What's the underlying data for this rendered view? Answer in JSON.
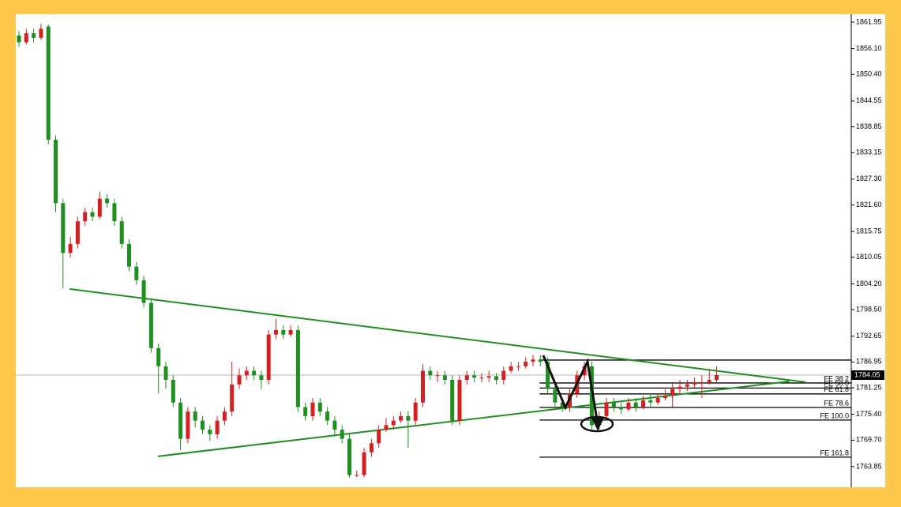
{
  "chart_data": {
    "type": "candlestick",
    "up_color": "#d42020",
    "down_color": "#1f8f1f",
    "open": [
      1859,
      1857.5,
      1859.5,
      1858.5,
      1861,
      1836,
      1822,
      1811,
      1813,
      1818,
      1820,
      1819,
      1823,
      1822,
      1818,
      1813,
      1808,
      1805,
      1800,
      1790,
      1786,
      1783,
      1778,
      1770,
      1776,
      1774,
      1772,
      1771,
      1774,
      1776,
      1782,
      1784,
      1785,
      1784,
      1783,
      1793,
      1794,
      1793,
      1794,
      1777,
      1775,
      1778,
      1776,
      1774,
      1772,
      1770,
      1762,
      1762,
      1767,
      1769,
      1772,
      1773,
      1774,
      1775,
      1774,
      1778,
      1785,
      1784,
      1784,
      1783,
      1774,
      1783,
      1784,
      1783.5,
      1783.5,
      1783.8,
      1783,
      1785,
      1786,
      1786,
      1787,
      1787.5,
      1787,
      1781,
      1778,
      1777,
      1780,
      1784,
      1786,
      1773,
      1775,
      1778,
      1777,
      1776.5,
      1778,
      1777,
      1778.5,
      1778,
      1779,
      1779.5,
      1781,
      1781.5,
      1782,
      1782.5,
      1782.5,
      1783
    ],
    "high": [
      1860,
      1860.5,
      1860.5,
      1861.6,
      1861.5,
      1837,
      1823,
      1814.5,
      1819,
      1821,
      1821,
      1824.5,
      1824,
      1823,
      1819,
      1814,
      1809,
      1806,
      1801,
      1791,
      1787,
      1784,
      1779,
      1777,
      1777,
      1775,
      1773,
      1775,
      1777,
      1787,
      1785.5,
      1786,
      1786,
      1785,
      1794,
      1796.5,
      1795,
      1795,
      1795,
      1778,
      1779,
      1779,
      1777,
      1775,
      1773,
      1771,
      1763,
      1768,
      1770,
      1773,
      1774.5,
      1775,
      1776,
      1776,
      1779,
      1786.5,
      1786,
      1785,
      1785,
      1784,
      1784,
      1785,
      1785,
      1784.5,
      1785,
      1784.5,
      1786,
      1787,
      1787,
      1788,
      1788.5,
      1788.5,
      1788,
      1782,
      1779,
      1781,
      1785,
      1787,
      1787,
      1776,
      1779,
      1779,
      1778,
      1779,
      1779,
      1779.5,
      1780,
      1780,
      1781,
      1782.5,
      1783,
      1783,
      1783.5,
      1784,
      1785,
      1786
    ],
    "low": [
      1856.5,
      1857,
      1857.5,
      1858,
      1835,
      1820,
      1803.2,
      1810,
      1812,
      1817,
      1818,
      1818.5,
      1821,
      1817,
      1812,
      1807,
      1804,
      1799,
      1789,
      1780,
      1781,
      1777,
      1767.5,
      1769,
      1772.5,
      1771,
      1769.5,
      1770,
      1773,
      1775,
      1781,
      1783,
      1783,
      1781,
      1782,
      1792,
      1792,
      1792.5,
      1776,
      1774,
      1774,
      1775,
      1773,
      1770.5,
      1769,
      1761.4,
      1761.5,
      1761.5,
      1766,
      1768,
      1771.5,
      1772,
      1773.5,
      1768,
      1773,
      1777,
      1783,
      1782.5,
      1782,
      1773,
      1773,
      1782,
      1782.5,
      1782.5,
      1782.5,
      1782,
      1782,
      1784.5,
      1785,
      1785.5,
      1786,
      1786,
      1780,
      1777,
      1776,
      1776,
      1779,
      1783,
      1771.5,
      1772,
      1774.5,
      1776,
      1775.5,
      1776,
      1776,
      1776.5,
      1777,
      1777.5,
      1778.5,
      1777,
      1780,
      1780.5,
      1781,
      1779,
      1782,
      1782.5
    ],
    "close": [
      1857.5,
      1859.5,
      1858.5,
      1860.5,
      1836,
      1822,
      1811,
      1813,
      1818,
      1820,
      1819,
      1823,
      1822,
      1818,
      1813,
      1808,
      1805,
      1800,
      1790,
      1786,
      1783,
      1778,
      1770,
      1776,
      1774,
      1772,
      1771,
      1774,
      1776,
      1782,
      1784,
      1785,
      1784,
      1783,
      1793,
      1794,
      1793,
      1794,
      1777,
      1775,
      1778,
      1776,
      1774,
      1772,
      1770,
      1762,
      1762,
      1767,
      1769,
      1772,
      1773,
      1774,
      1775,
      1774,
      1778,
      1785,
      1784,
      1784,
      1783,
      1774,
      1783,
      1784,
      1783.5,
      1783.5,
      1783.8,
      1783,
      1785,
      1786,
      1786,
      1787,
      1787.5,
      1787,
      1781,
      1778,
      1777,
      1780,
      1784,
      1786,
      1773,
      1775,
      1778,
      1777,
      1776.5,
      1778,
      1777,
      1778.5,
      1778,
      1779,
      1779.5,
      1781,
      1781.5,
      1782,
      1782.5,
      1782.5,
      1783,
      1784.05
    ],
    "ylim": [
      1759.3,
      1863.7
    ],
    "yticks": [
      1861.95,
      {
        "value": 1856.1,
        "label": "1856.10"
      },
      {
        "value": 1850.4,
        "label": "1850.40"
      },
      1844.55,
      1838.85,
      1833.15,
      {
        "value": 1827.3,
        "label": "1827.30"
      },
      {
        "value": 1821.6,
        "label": "1821.60"
      },
      1815.75,
      1810.05,
      {
        "value": 1804.2,
        "label": "1804.20"
      },
      {
        "value": 1798.5,
        "label": "1798.50"
      },
      1792.65,
      1786.95,
      1781.25,
      {
        "value": 1775.4,
        "label": "1775.40"
      },
      {
        "value": 1769.7,
        "label": "1769.70"
      },
      1763.85
    ],
    "last_price": 1784.05,
    "trendlines": [
      {
        "x": [
          6.9,
          107.1
        ],
        "y": [
          1803.06,
          1782.5
        ],
        "color": "#1f8f1f"
      },
      {
        "x": [
          18.9,
          104.9
        ],
        "y": [
          1766.12,
          1782.67
        ],
        "color": "#1f8f1f"
      }
    ],
    "fib_start_x": 70.9,
    "fib_levels": [
      {
        "value": 1787.37
      },
      {
        "value": 1782.32,
        "label": "FE 38.2"
      },
      {
        "value": 1781.2,
        "label": "FE 50.0"
      },
      {
        "value": 1779.9,
        "label": "FE 61.8"
      },
      {
        "value": 1776.92,
        "label": "FE 78.6"
      },
      {
        "value": 1774.13,
        "label": "FE 100.0"
      },
      {
        "value": 1765.94,
        "label": "FE 161.8"
      }
    ]
  }
}
